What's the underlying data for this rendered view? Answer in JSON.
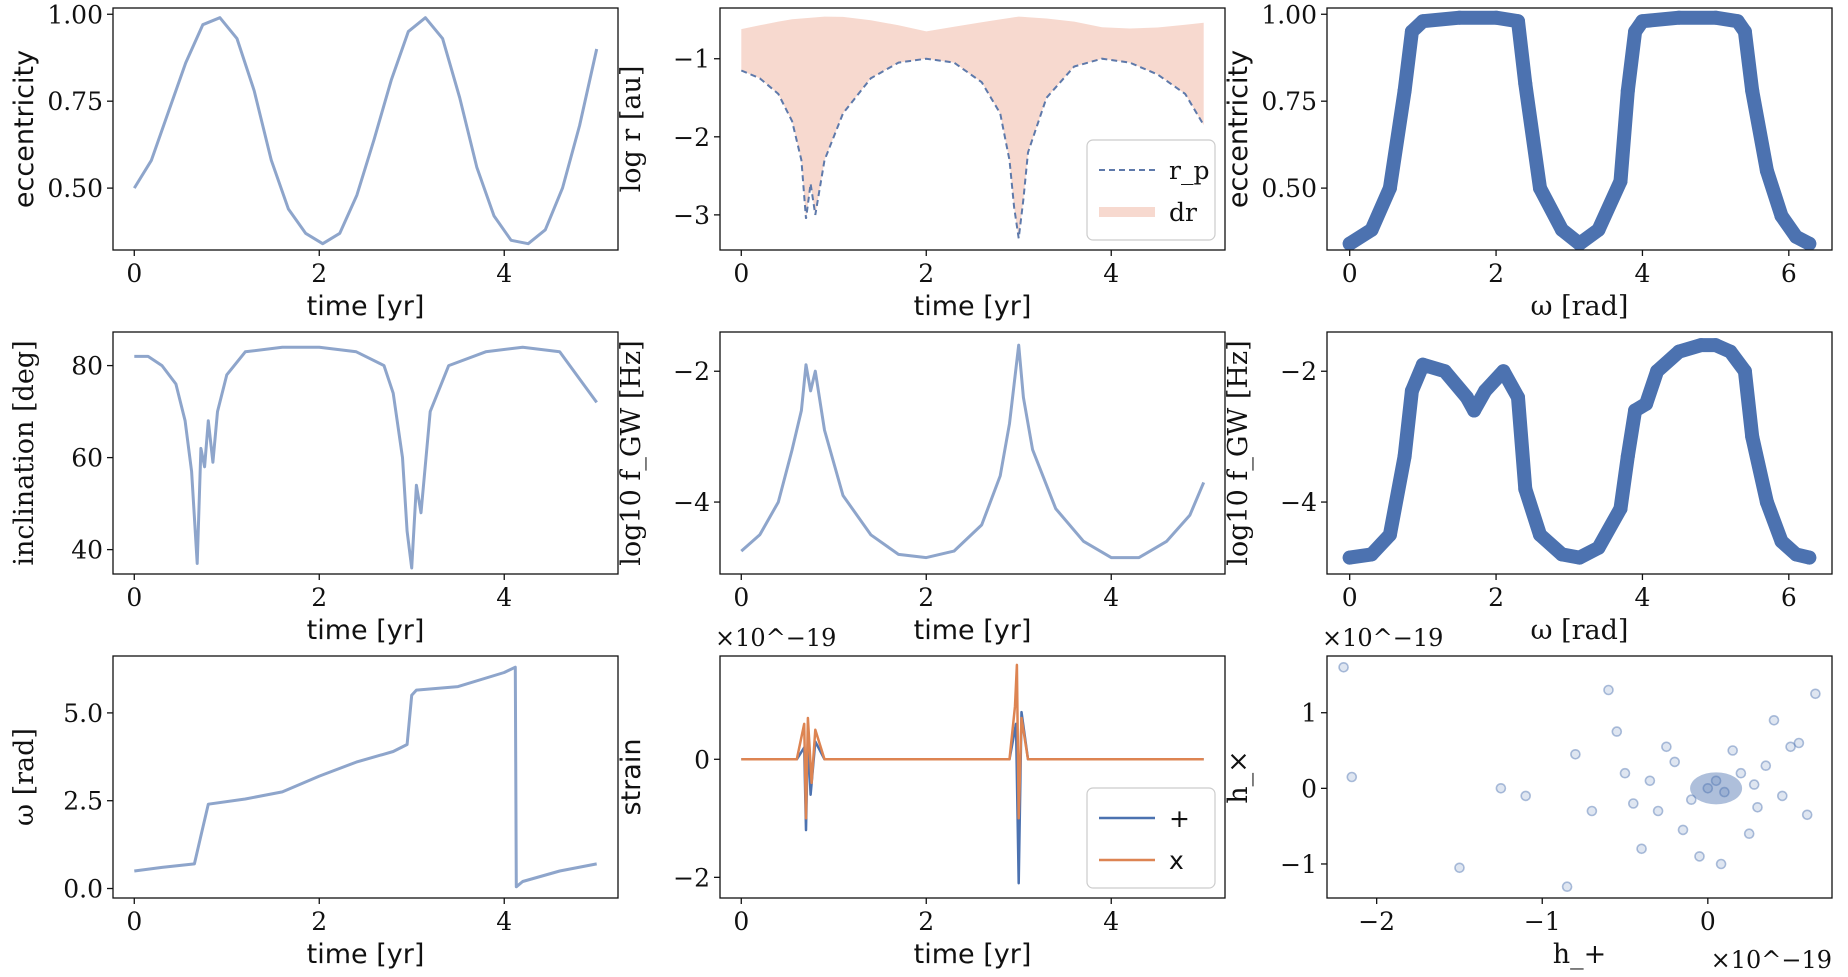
{
  "colors": {
    "line": "#8ea5cb",
    "scatter": "#4c72b0",
    "dashed": "#5e79aa",
    "fill": "#f7d9cf",
    "plus": "#4c72b0",
    "cross": "#dd8452",
    "axis": "#111111"
  },
  "chart_data": [
    {
      "id": "ecc_time",
      "type": "line",
      "title": "",
      "xlabel": "time [yr]",
      "ylabel": "eccentricity",
      "xlim": [
        -0.23,
        5.23
      ],
      "ylim": [
        0.322,
        1.018
      ],
      "xticks": [
        0,
        2,
        4
      ],
      "xtick_labels": [
        "0",
        "2",
        "4"
      ],
      "yticks": [
        0.5,
        0.75,
        1.0
      ],
      "ytick_labels": [
        "0.50",
        "0.75",
        "1.00"
      ],
      "series": [
        {
          "name": "eccentricity",
          "x_range": [
            0,
            5
          ],
          "values": [
            0.5,
            0.58,
            0.72,
            0.86,
            0.97,
            0.99,
            0.93,
            0.78,
            0.58,
            0.44,
            0.37,
            0.34,
            0.37,
            0.48,
            0.64,
            0.81,
            0.95,
            0.99,
            0.93,
            0.76,
            0.56,
            0.42,
            0.35,
            0.34,
            0.38,
            0.5,
            0.68,
            0.9
          ]
        }
      ]
    },
    {
      "id": "logr_time",
      "type": "area",
      "title": "",
      "xlabel": "time [yr]",
      "ylabel": "log r [au]",
      "xlim": [
        -0.23,
        5.23
      ],
      "ylim": [
        -3.45,
        -0.35
      ],
      "xticks": [
        0,
        2,
        4
      ],
      "xtick_labels": [
        "0",
        "2",
        "4"
      ],
      "yticks": [
        -3,
        -2,
        -1
      ],
      "ytick_labels": [
        "−3",
        "−2",
        "−1"
      ],
      "legend": [
        {
          "label": "r_p",
          "style": "dashed"
        },
        {
          "label": "dr",
          "style": "fill"
        }
      ],
      "legend_loc": "lower-right",
      "series": [
        {
          "name": "r_p",
          "x": [
            0,
            0.2,
            0.4,
            0.55,
            0.65,
            0.7,
            0.75,
            0.8,
            0.9,
            1.1,
            1.4,
            1.7,
            2.0,
            2.3,
            2.6,
            2.8,
            2.9,
            2.95,
            3.0,
            3.05,
            3.1,
            3.3,
            3.6,
            3.9,
            4.2,
            4.5,
            4.8,
            5.0
          ],
          "values": [
            -1.15,
            -1.25,
            -1.45,
            -1.8,
            -2.3,
            -3.05,
            -2.6,
            -3.0,
            -2.3,
            -1.7,
            -1.25,
            -1.05,
            -1.0,
            -1.05,
            -1.3,
            -1.7,
            -2.3,
            -2.9,
            -3.3,
            -2.8,
            -2.2,
            -1.5,
            -1.1,
            -1.0,
            -1.05,
            -1.2,
            -1.45,
            -1.85
          ]
        },
        {
          "name": "dr_upper",
          "x": [
            0,
            0.5,
            1.0,
            1.5,
            2.0,
            2.5,
            3.0,
            3.5,
            4.0,
            4.5,
            5.0
          ],
          "values": [
            -0.62,
            -0.5,
            -0.45,
            -0.52,
            -0.65,
            -0.55,
            -0.46,
            -0.5,
            -0.62,
            -0.6,
            -0.54
          ]
        }
      ]
    },
    {
      "id": "ecc_omega",
      "type": "scatter",
      "title": "",
      "xlabel": "ω [rad]",
      "ylabel": "eccentricity",
      "xlim": [
        -0.31,
        6.59
      ],
      "ylim": [
        0.322,
        1.018
      ],
      "xticks": [
        0,
        2,
        4,
        6
      ],
      "xtick_labels": [
        "0",
        "2",
        "4",
        "6"
      ],
      "yticks": [
        0.5,
        0.75,
        1.0
      ],
      "ytick_labels": [
        "0.50",
        "0.75",
        "1.00"
      ],
      "series": [
        {
          "name": "eccentricity",
          "x": [
            0,
            0.3,
            0.55,
            0.75,
            0.85,
            1.0,
            1.5,
            2.0,
            2.3,
            2.4,
            2.6,
            2.9,
            3.14,
            3.4,
            3.7,
            3.8,
            3.9,
            4.0,
            4.5,
            5.0,
            5.3,
            5.4,
            5.5,
            5.7,
            5.9,
            6.1,
            6.28
          ],
          "values": [
            0.34,
            0.38,
            0.5,
            0.78,
            0.95,
            0.98,
            0.99,
            0.99,
            0.98,
            0.8,
            0.5,
            0.38,
            0.34,
            0.38,
            0.52,
            0.78,
            0.95,
            0.98,
            0.99,
            0.99,
            0.98,
            0.95,
            0.78,
            0.55,
            0.42,
            0.36,
            0.34
          ]
        }
      ]
    },
    {
      "id": "inc_time",
      "type": "line",
      "title": "",
      "xlabel": "time [yr]",
      "ylabel": "inclination [deg]",
      "xlim": [
        -0.23,
        5.23
      ],
      "ylim": [
        34.7,
        87.3
      ],
      "xticks": [
        0,
        2,
        4
      ],
      "xtick_labels": [
        "0",
        "2",
        "4"
      ],
      "yticks": [
        40,
        60,
        80
      ],
      "ytick_labels": [
        "40",
        "60",
        "80"
      ],
      "series": [
        {
          "name": "inclination",
          "x": [
            0,
            0.15,
            0.3,
            0.45,
            0.55,
            0.62,
            0.68,
            0.72,
            0.76,
            0.8,
            0.85,
            0.9,
            1.0,
            1.2,
            1.6,
            2.0,
            2.4,
            2.7,
            2.8,
            2.9,
            2.95,
            3.0,
            3.05,
            3.1,
            3.2,
            3.4,
            3.8,
            4.2,
            4.6,
            5.0
          ],
          "values": [
            82,
            82,
            80,
            76,
            68,
            57,
            37,
            62,
            58,
            68,
            59,
            70,
            78,
            83,
            84,
            84,
            83,
            80,
            74,
            60,
            44,
            36,
            54,
            48,
            70,
            80,
            83,
            84,
            83,
            72
          ]
        }
      ]
    },
    {
      "id": "fgw_time",
      "type": "line",
      "title": "",
      "xlabel": "time [yr]",
      "ylabel": "log10 f_GW [Hz]",
      "xlim": [
        -0.23,
        5.23
      ],
      "ylim": [
        -5.1,
        -1.4
      ],
      "xticks": [
        0,
        2,
        4
      ],
      "xtick_labels": [
        "0",
        "2",
        "4"
      ],
      "yticks": [
        -4,
        -2
      ],
      "ytick_labels": [
        "−4",
        "−2"
      ],
      "series": [
        {
          "name": "log10 f_GW",
          "x": [
            0,
            0.2,
            0.4,
            0.55,
            0.65,
            0.7,
            0.75,
            0.8,
            0.9,
            1.1,
            1.4,
            1.7,
            2.0,
            2.3,
            2.6,
            2.8,
            2.9,
            2.95,
            3.0,
            3.05,
            3.15,
            3.4,
            3.7,
            4.0,
            4.3,
            4.6,
            4.85,
            5.0
          ],
          "values": [
            -4.75,
            -4.5,
            -4.0,
            -3.2,
            -2.6,
            -1.9,
            -2.3,
            -2.0,
            -2.9,
            -3.9,
            -4.5,
            -4.8,
            -4.85,
            -4.75,
            -4.35,
            -3.6,
            -2.8,
            -2.2,
            -1.6,
            -2.4,
            -3.2,
            -4.1,
            -4.6,
            -4.85,
            -4.85,
            -4.6,
            -4.2,
            -3.7
          ]
        }
      ]
    },
    {
      "id": "fgw_omega",
      "type": "scatter",
      "title": "",
      "xlabel": "ω [rad]",
      "ylabel": "log10 f_GW [Hz]",
      "xlim": [
        -0.31,
        6.59
      ],
      "ylim": [
        -5.1,
        -1.4
      ],
      "xticks": [
        0,
        2,
        4,
        6
      ],
      "xtick_labels": [
        "0",
        "2",
        "4",
        "6"
      ],
      "yticks": [
        -4,
        -2
      ],
      "ytick_labels": [
        "−4",
        "−2"
      ],
      "series": [
        {
          "name": "log10 f_GW",
          "x": [
            0,
            0.3,
            0.55,
            0.75,
            0.85,
            1.0,
            1.3,
            1.6,
            1.7,
            1.85,
            2.1,
            2.3,
            2.4,
            2.6,
            2.9,
            3.14,
            3.4,
            3.7,
            3.8,
            3.9,
            4.05,
            4.2,
            4.5,
            4.8,
            5.0,
            5.2,
            5.4,
            5.5,
            5.7,
            5.9,
            6.1,
            6.28
          ],
          "values": [
            -4.85,
            -4.8,
            -4.5,
            -3.3,
            -2.3,
            -1.9,
            -2.0,
            -2.4,
            -2.6,
            -2.3,
            -2.0,
            -2.4,
            -3.8,
            -4.5,
            -4.8,
            -4.85,
            -4.7,
            -4.1,
            -3.3,
            -2.6,
            -2.5,
            -2.0,
            -1.7,
            -1.6,
            -1.6,
            -1.7,
            -2.0,
            -3.0,
            -4.0,
            -4.6,
            -4.8,
            -4.85
          ]
        }
      ]
    },
    {
      "id": "omega_time",
      "type": "line",
      "title": "",
      "xlabel": "time [yr]",
      "ylabel": "ω [rad]",
      "xlim": [
        -0.23,
        5.23
      ],
      "ylim": [
        -0.27,
        6.62
      ],
      "xticks": [
        0,
        2,
        4
      ],
      "xtick_labels": [
        "0",
        "2",
        "4"
      ],
      "yticks": [
        0.0,
        2.5,
        5.0
      ],
      "ytick_labels": [
        "0.0",
        "2.5",
        "5.0"
      ],
      "series": [
        {
          "name": "omega",
          "x": [
            0,
            0.3,
            0.65,
            0.72,
            0.8,
            1.2,
            1.6,
            2.0,
            2.4,
            2.8,
            2.95,
            3.0,
            3.05,
            3.5,
            4.0,
            4.12,
            4.13,
            4.2,
            4.6,
            5.0
          ],
          "values": [
            0.5,
            0.6,
            0.7,
            1.5,
            2.4,
            2.55,
            2.75,
            3.2,
            3.6,
            3.9,
            4.1,
            5.5,
            5.65,
            5.75,
            6.15,
            6.3,
            0.05,
            0.2,
            0.5,
            0.7
          ]
        }
      ]
    },
    {
      "id": "strain_time",
      "type": "line",
      "title": "",
      "xlabel": "time [yr]",
      "ylabel": "strain",
      "offset_label": "×10^−19",
      "xlim": [
        -0.23,
        5.23
      ],
      "ylim": [
        -2.35,
        1.75
      ],
      "xticks": [
        0,
        2,
        4
      ],
      "xtick_labels": [
        "0",
        "2",
        "4"
      ],
      "yticks": [
        -2,
        0
      ],
      "ytick_labels": [
        "−2",
        "0"
      ],
      "legend": [
        {
          "label": "+",
          "color": "#4c72b0"
        },
        {
          "label": "x",
          "color": "#dd8452"
        }
      ],
      "legend_loc": "lower-right",
      "series": [
        {
          "name": "+",
          "x": [
            0,
            0.6,
            0.68,
            0.7,
            0.72,
            0.75,
            0.8,
            0.9,
            2.9,
            2.97,
            3.0,
            3.03,
            3.1,
            5.0
          ],
          "values": [
            0,
            0,
            0.2,
            -1.2,
            0.4,
            -0.6,
            0.3,
            0,
            0,
            0.6,
            -2.1,
            0.8,
            0,
            0
          ]
        },
        {
          "name": "x",
          "x": [
            0,
            0.6,
            0.68,
            0.7,
            0.72,
            0.76,
            0.8,
            0.9,
            2.9,
            2.96,
            2.98,
            3.0,
            3.03,
            3.1,
            5.0
          ],
          "values": [
            0,
            0,
            0.6,
            -1.0,
            0.7,
            -0.4,
            0.5,
            0,
            0,
            0.9,
            1.6,
            -1.0,
            0.7,
            0,
            0
          ]
        }
      ]
    },
    {
      "id": "hcross_hplus",
      "type": "scatter",
      "title": "",
      "xlabel": "h_+",
      "ylabel": "h_×",
      "offset_label": "×10^−19",
      "x_offset_label": "×10^−19",
      "xlim": [
        -2.3,
        0.75
      ],
      "ylim": [
        -1.45,
        1.75
      ],
      "xticks": [
        -2,
        -1,
        0
      ],
      "xtick_labels": [
        "−2",
        "−1",
        "0"
      ],
      "yticks": [
        -1,
        0,
        1
      ],
      "ytick_labels": [
        "−1",
        "0",
        "1"
      ],
      "series": [
        {
          "name": "h",
          "x": [
            -2.2,
            -2.15,
            -1.5,
            -0.85,
            -1.25,
            -1.1,
            -0.6,
            -0.5,
            -0.45,
            -0.35,
            -0.3,
            -0.2,
            -0.1,
            0,
            0.05,
            0.1,
            0.2,
            0.3,
            0.5,
            0.6,
            0.65,
            0.55,
            0.4,
            -0.7,
            -0.8,
            -0.15,
            0.15,
            0.25,
            -0.25,
            0.35,
            0.45,
            -0.05,
            0.08,
            -0.4,
            -0.55,
            0.28
          ],
          "values": [
            1.6,
            0.15,
            -1.05,
            -1.3,
            0.0,
            -0.1,
            1.3,
            0.2,
            -0.2,
            0.1,
            -0.3,
            0.35,
            -0.15,
            0.0,
            0.1,
            -0.05,
            0.2,
            -0.25,
            0.55,
            -0.35,
            1.25,
            0.6,
            0.9,
            -0.3,
            0.45,
            -0.55,
            0.5,
            -0.6,
            0.55,
            0.3,
            -0.1,
            -0.9,
            -1.0,
            -0.8,
            0.75,
            0.05
          ]
        }
      ]
    }
  ]
}
